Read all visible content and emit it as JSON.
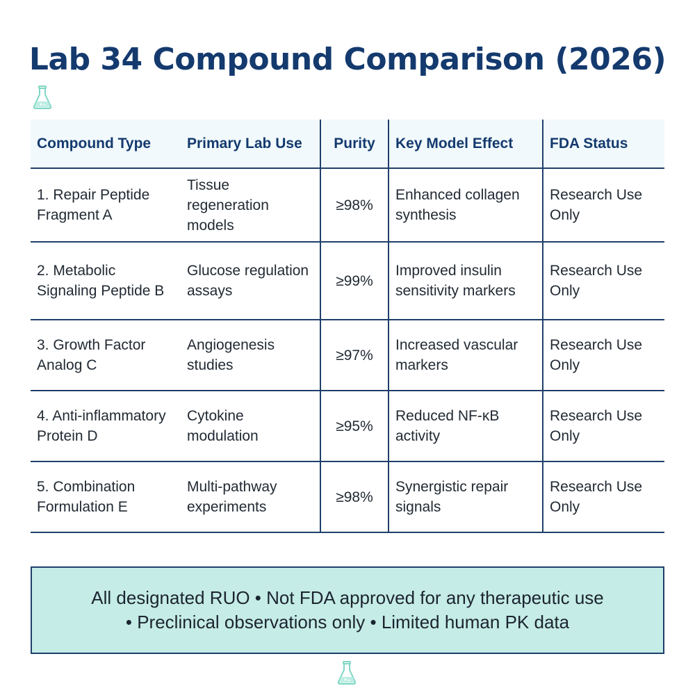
{
  "page_title": "Lab 34 Compound Comparison (2026)",
  "icons": {
    "decoration": "flask-icon",
    "accent_color": "#7fd6c4"
  },
  "table": {
    "headers": [
      "Compound Type",
      "Primary Lab Use",
      "Purity",
      "Key Model Effect",
      "FDA Status"
    ],
    "rows": [
      {
        "compound": [
          "1. Repair Peptide",
          "Fragment A"
        ],
        "use": [
          "Tissue",
          "regeneration",
          "models"
        ],
        "purity": "≥98%",
        "effect": [
          "Enhanced collagen",
          "synthesis"
        ],
        "status": [
          "Research Use",
          "Only"
        ]
      },
      {
        "compound": [
          "2. Metabolic",
          "Signaling Peptide B"
        ],
        "use": [
          "Glucose regulation",
          "assays"
        ],
        "purity": "≥99%",
        "effect": [
          "Improved insulin",
          "sensitivity markers"
        ],
        "status": [
          "Research Use",
          "Only"
        ]
      },
      {
        "compound": [
          "3. Growth Factor",
          "Analog C"
        ],
        "use": [
          "Angiogenesis",
          "studies"
        ],
        "purity": "≥97%",
        "effect": [
          "Increased vascular",
          "markers"
        ],
        "status": [
          "Research Use",
          "Only"
        ]
      },
      {
        "compound": [
          "4. Anti-inflammatory",
          "Protein D"
        ],
        "use": [
          "Cytokine",
          "modulation"
        ],
        "purity": "≥95%",
        "effect": [
          "Reduced NF-κB",
          "activity"
        ],
        "status": [
          "Research Use",
          "Only"
        ]
      },
      {
        "compound": [
          "5. Combination",
          "Formulation E"
        ],
        "use": [
          "Multi-pathway",
          "experiments"
        ],
        "purity": "≥98%",
        "effect": [
          "Synergistic repair",
          "signals"
        ],
        "status": [
          "Research Use",
          "Only"
        ]
      }
    ]
  },
  "notice": {
    "line1": "All designated RUO • Not FDA approved for any therapeutic use",
    "line2": "• Preclinical observations only • Limited human PK data"
  }
}
